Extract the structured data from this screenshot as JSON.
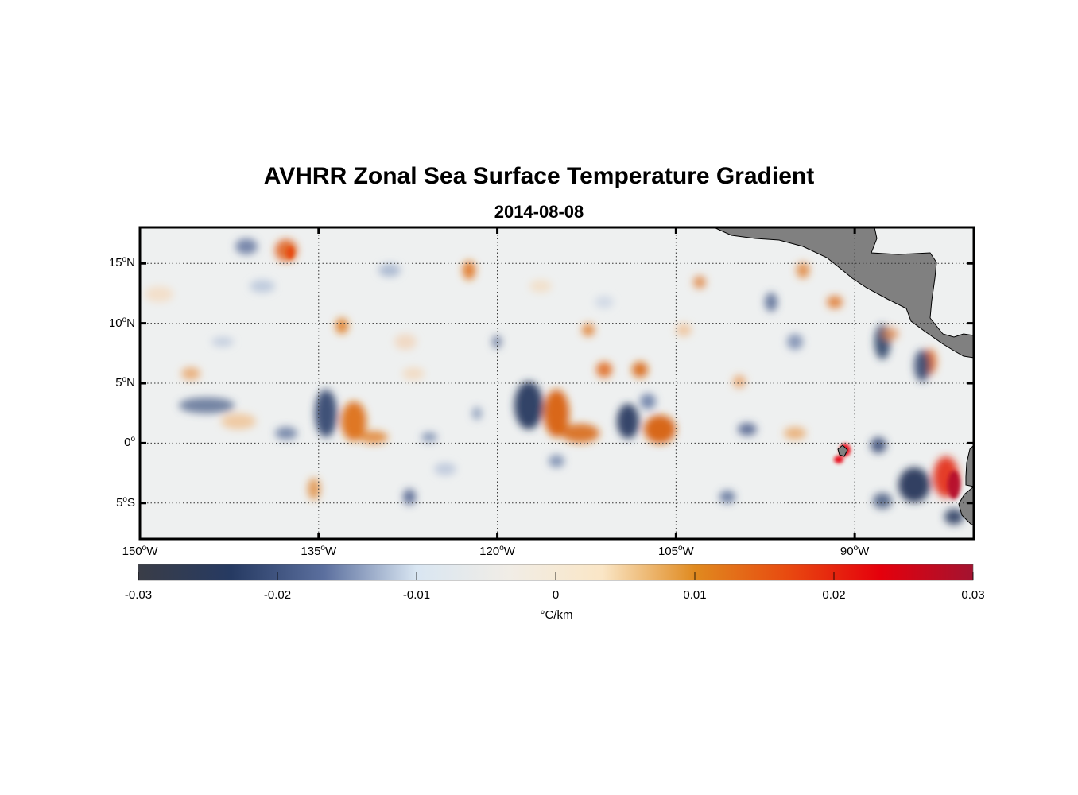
{
  "title": "AVHRR Zonal Sea Surface Temperature Gradient",
  "subtitle": "2014-08-08",
  "lat_ticks": [
    {
      "deg": "15",
      "hemi": "N"
    },
    {
      "deg": "10",
      "hemi": "N"
    },
    {
      "deg": "5",
      "hemi": "N"
    },
    {
      "deg": "0",
      "hemi": ""
    },
    {
      "deg": "5",
      "hemi": "S"
    }
  ],
  "lon_ticks": [
    {
      "deg": "150",
      "hemi": "W"
    },
    {
      "deg": "135",
      "hemi": "W"
    },
    {
      "deg": "120",
      "hemi": "W"
    },
    {
      "deg": "105",
      "hemi": "W"
    },
    {
      "deg": "90",
      "hemi": "W"
    }
  ],
  "colorbar": {
    "ticks": [
      "-0.03",
      "-0.02",
      "-0.01",
      "0",
      "0.01",
      "0.02",
      "0.03"
    ],
    "unit": "°C/km",
    "range": [
      -0.03,
      0.03
    ],
    "colors": [
      "#3a3d47",
      "#263a62",
      "#5b6f9e",
      "#d9e6f2",
      "#f1ede6",
      "#fae6c6",
      "#e08a1f",
      "#e84a10",
      "#e5000c",
      "#a31330"
    ]
  },
  "map": {
    "lon_range": [
      -150,
      -80
    ],
    "lat_range": [
      -8,
      18
    ],
    "ocean_color": "#eef0f0",
    "land_color": "#808080"
  }
}
